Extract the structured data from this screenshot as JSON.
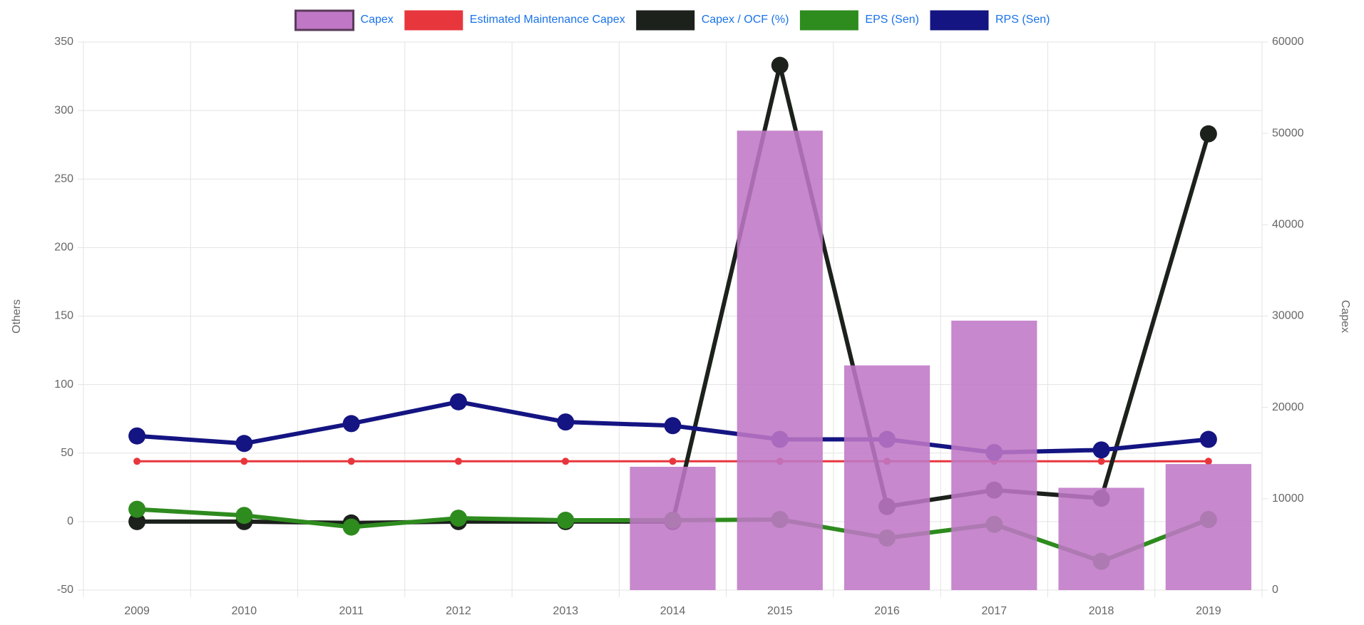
{
  "chart_data": {
    "type": "combo",
    "categories": [
      "2009",
      "2010",
      "2011",
      "2012",
      "2013",
      "2014",
      "2015",
      "2016",
      "2017",
      "2018",
      "2019"
    ],
    "series": [
      {
        "name": "Capex",
        "type": "bar",
        "axis": "y2",
        "color": "#bf77c6",
        "values": [
          null,
          null,
          null,
          null,
          null,
          13500,
          50300,
          24600,
          29500,
          11200,
          13800
        ]
      },
      {
        "name": "Estimated Maintenance Capex",
        "type": "line",
        "axis": "y2",
        "color": "#e8363d",
        "marker": "small",
        "values": [
          14100,
          14100,
          14100,
          14100,
          14100,
          14100,
          14100,
          14100,
          14100,
          14100,
          14100
        ]
      },
      {
        "name": "Capex / OCF (%)",
        "type": "line",
        "axis": "y",
        "color": "#1c211c",
        "marker": "large",
        "values": [
          0,
          0,
          -1,
          0,
          0,
          0,
          333,
          11,
          23,
          17,
          283
        ]
      },
      {
        "name": "EPS (Sen)",
        "type": "line",
        "axis": "y",
        "color": "#2e8b1e",
        "marker": "large",
        "values": [
          9,
          4.5,
          -4,
          2.5,
          1,
          1,
          1.5,
          -12,
          -2,
          -29,
          1.5
        ]
      },
      {
        "name": "RPS (Sen)",
        "type": "line",
        "axis": "y",
        "color": "#141482",
        "marker": "large",
        "values": [
          62.5,
          57,
          71.5,
          87.4,
          72.7,
          70,
          60,
          60,
          50.4,
          52.3,
          60
        ]
      }
    ],
    "ylabel": "Others",
    "y2label": "Capex",
    "ylim": [
      -50,
      350
    ],
    "yticks": [
      -50,
      0,
      50,
      100,
      150,
      200,
      250,
      300,
      350
    ],
    "y2lim": [
      0,
      60000
    ],
    "y2ticks": [
      0,
      10000,
      20000,
      30000,
      40000,
      50000,
      60000
    ],
    "grid": true
  }
}
